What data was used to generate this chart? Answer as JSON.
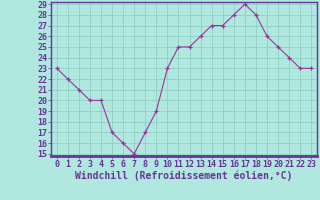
{
  "x": [
    0,
    1,
    2,
    3,
    4,
    5,
    6,
    7,
    8,
    9,
    10,
    11,
    12,
    13,
    14,
    15,
    16,
    17,
    18,
    19,
    20,
    21,
    22,
    23
  ],
  "y": [
    23,
    22,
    21,
    20,
    20,
    17,
    16,
    15,
    17,
    19,
    23,
    25,
    25,
    26,
    27,
    27,
    28,
    29,
    28,
    26,
    25,
    24,
    23,
    23
  ],
  "line_color": "#993399",
  "marker": "+",
  "bg_color": "#b0e8e0",
  "grid_color": "#88ccbb",
  "xlabel": "Windchill (Refroidissement éolien,°C)",
  "ylim": [
    15,
    29
  ],
  "xlim": [
    -0.5,
    23.5
  ],
  "yticks": [
    15,
    16,
    17,
    18,
    19,
    20,
    21,
    22,
    23,
    24,
    25,
    26,
    27,
    28,
    29
  ],
  "xticks": [
    0,
    1,
    2,
    3,
    4,
    5,
    6,
    7,
    8,
    9,
    10,
    11,
    12,
    13,
    14,
    15,
    16,
    17,
    18,
    19,
    20,
    21,
    22,
    23
  ],
  "xlabel_fontsize": 7,
  "tick_fontsize": 6,
  "axis_bg": "#b0e8e0",
  "spine_color": "#663399",
  "label_color": "#663399",
  "bottom_bar_color": "#663399"
}
